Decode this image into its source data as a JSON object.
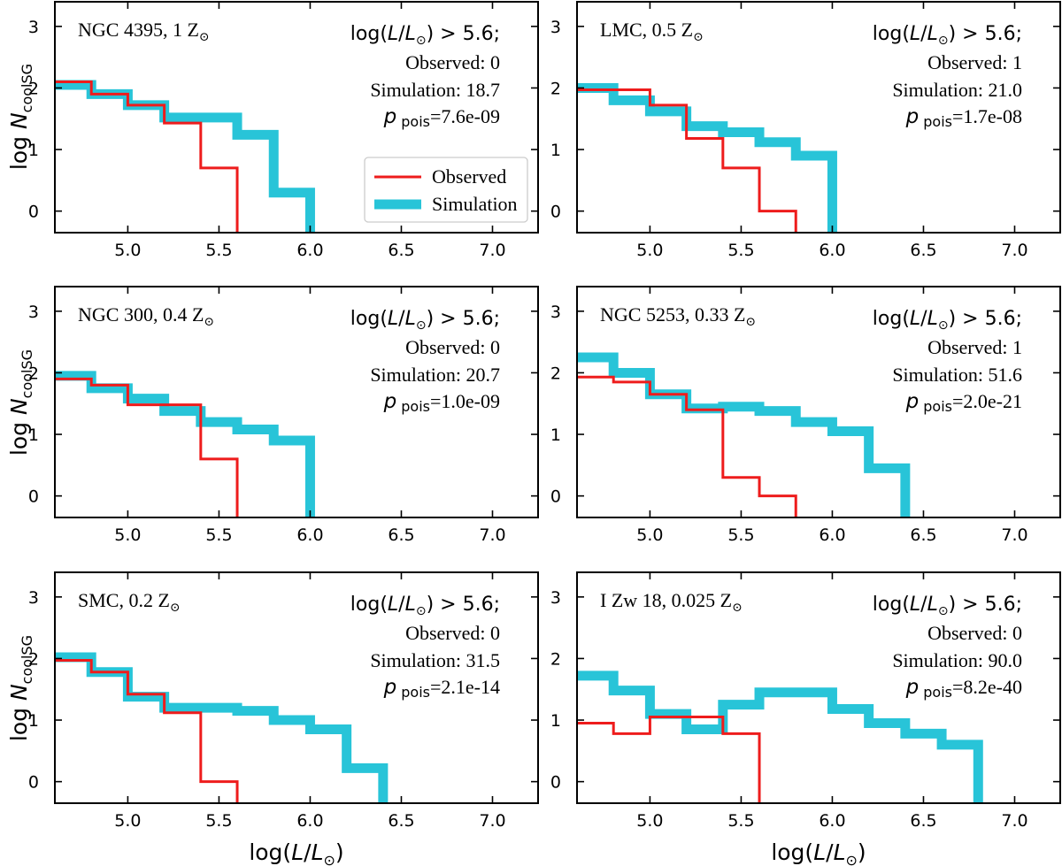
{
  "chart_data": [
    {
      "type": "step",
      "panel_label": "NGC 4395, 1 Z",
      "condition": "log(L/L) > 5.6;",
      "observed_text": "Observed: 0",
      "simulation_text": "Simulation: 18.7",
      "p_value_text": "=7.6e-09",
      "xlim": [
        4.6,
        7.25
      ],
      "ylim": [
        -0.35,
        3.4
      ],
      "series": [
        {
          "name": "Observed",
          "color": "#ee1c1c",
          "bins": [
            [
              4.6,
              4.8,
              2.1
            ],
            [
              4.8,
              5.0,
              1.9
            ],
            [
              5.0,
              5.2,
              1.72
            ],
            [
              5.2,
              5.4,
              1.43
            ],
            [
              5.4,
              5.6,
              0.7
            ]
          ]
        },
        {
          "name": "Simulation",
          "color": "#28c4d8",
          "bins": [
            [
              4.6,
              4.8,
              2.05
            ],
            [
              4.8,
              5.0,
              1.9
            ],
            [
              5.0,
              5.2,
              1.72
            ],
            [
              5.2,
              5.4,
              1.52
            ],
            [
              5.4,
              5.6,
              1.52
            ],
            [
              5.6,
              5.8,
              1.24
            ],
            [
              5.8,
              6.0,
              0.3
            ]
          ]
        }
      ]
    },
    {
      "type": "step",
      "panel_label": "LMC, 0.5 Z",
      "condition": "log(L/L) > 5.6;",
      "observed_text": "Observed: 1",
      "simulation_text": "Simulation: 21.0",
      "p_value_text": "=1.7e-08",
      "xlim": [
        4.6,
        7.25
      ],
      "ylim": [
        -0.35,
        3.4
      ],
      "series": [
        {
          "name": "Observed",
          "color": "#ee1c1c",
          "bins": [
            [
              4.6,
              4.8,
              1.97
            ],
            [
              4.8,
              5.0,
              1.97
            ],
            [
              5.0,
              5.2,
              1.72
            ],
            [
              5.2,
              5.4,
              1.18
            ],
            [
              5.4,
              5.6,
              0.7
            ],
            [
              5.6,
              5.8,
              0.0
            ]
          ]
        },
        {
          "name": "Simulation",
          "color": "#28c4d8",
          "bins": [
            [
              4.6,
              4.8,
              2.0
            ],
            [
              4.8,
              5.0,
              1.8
            ],
            [
              5.0,
              5.2,
              1.62
            ],
            [
              5.2,
              5.4,
              1.38
            ],
            [
              5.4,
              5.6,
              1.28
            ],
            [
              5.6,
              5.8,
              1.12
            ],
            [
              5.8,
              6.0,
              0.9
            ]
          ]
        }
      ]
    },
    {
      "type": "step",
      "panel_label": "NGC 300, 0.4 Z",
      "condition": "log(L/L) > 5.6;",
      "observed_text": "Observed: 0",
      "simulation_text": "Simulation: 20.7",
      "p_value_text": "=1.0e-09",
      "xlim": [
        4.6,
        7.25
      ],
      "ylim": [
        -0.35,
        3.4
      ],
      "series": [
        {
          "name": "Observed",
          "color": "#ee1c1c",
          "bins": [
            [
              4.6,
              4.8,
              1.9
            ],
            [
              4.8,
              5.0,
              1.8
            ],
            [
              5.0,
              5.2,
              1.48
            ],
            [
              5.2,
              5.4,
              1.48
            ],
            [
              5.4,
              5.6,
              0.6
            ]
          ]
        },
        {
          "name": "Simulation",
          "color": "#28c4d8",
          "bins": [
            [
              4.6,
              4.8,
              1.95
            ],
            [
              4.8,
              5.0,
              1.75
            ],
            [
              5.0,
              5.2,
              1.58
            ],
            [
              5.2,
              5.4,
              1.38
            ],
            [
              5.4,
              5.6,
              1.2
            ],
            [
              5.6,
              5.8,
              1.08
            ],
            [
              5.8,
              6.0,
              0.9
            ]
          ]
        }
      ]
    },
    {
      "type": "step",
      "panel_label": "NGC 5253, 0.33 Z",
      "condition": "log(L/L) > 5.6;",
      "observed_text": "Observed: 1",
      "simulation_text": "Simulation: 51.6",
      "p_value_text": "=2.0e-21",
      "xlim": [
        4.6,
        7.25
      ],
      "ylim": [
        -0.35,
        3.4
      ],
      "series": [
        {
          "name": "Observed",
          "color": "#ee1c1c",
          "bins": [
            [
              4.6,
              4.8,
              1.93
            ],
            [
              4.8,
              5.0,
              1.85
            ],
            [
              5.0,
              5.2,
              1.65
            ],
            [
              5.2,
              5.4,
              1.4
            ],
            [
              5.4,
              5.6,
              0.3
            ],
            [
              5.6,
              5.8,
              0.0
            ]
          ]
        },
        {
          "name": "Simulation",
          "color": "#28c4d8",
          "bins": [
            [
              4.6,
              4.8,
              2.25
            ],
            [
              4.8,
              5.0,
              2.0
            ],
            [
              5.0,
              5.2,
              1.65
            ],
            [
              5.2,
              5.4,
              1.42
            ],
            [
              5.4,
              5.6,
              1.45
            ],
            [
              5.6,
              5.8,
              1.38
            ],
            [
              5.8,
              6.0,
              1.2
            ],
            [
              6.0,
              6.2,
              1.05
            ],
            [
              6.2,
              6.4,
              0.45
            ]
          ]
        }
      ]
    },
    {
      "type": "step",
      "panel_label": "SMC, 0.2 Z",
      "condition": "log(L/L) > 5.6;",
      "observed_text": "Observed: 0",
      "simulation_text": "Simulation: 31.5",
      "p_value_text": "=2.1e-14",
      "xlim": [
        4.6,
        7.25
      ],
      "ylim": [
        -0.35,
        3.4
      ],
      "series": [
        {
          "name": "Observed",
          "color": "#ee1c1c",
          "bins": [
            [
              4.6,
              4.8,
              1.97
            ],
            [
              4.8,
              5.0,
              1.78
            ],
            [
              5.0,
              5.2,
              1.42
            ],
            [
              5.2,
              5.4,
              1.12
            ],
            [
              5.4,
              5.6,
              0.0
            ]
          ]
        },
        {
          "name": "Simulation",
          "color": "#28c4d8",
          "bins": [
            [
              4.6,
              4.8,
              2.02
            ],
            [
              4.8,
              5.0,
              1.78
            ],
            [
              5.0,
              5.2,
              1.38
            ],
            [
              5.2,
              5.4,
              1.2
            ],
            [
              5.4,
              5.6,
              1.2
            ],
            [
              5.6,
              5.8,
              1.15
            ],
            [
              5.8,
              6.0,
              1.0
            ],
            [
              6.0,
              6.2,
              0.85
            ],
            [
              6.2,
              6.4,
              0.22
            ]
          ]
        }
      ]
    },
    {
      "type": "step",
      "panel_label": "I Zw 18, 0.025 Z",
      "condition": "log(L/L) > 5.6;",
      "observed_text": "Observed: 0",
      "simulation_text": "Simulation: 90.0",
      "p_value_text": "=8.2e-40",
      "xlim": [
        4.6,
        7.25
      ],
      "ylim": [
        -0.35,
        3.4
      ],
      "series": [
        {
          "name": "Observed",
          "color": "#ee1c1c",
          "bins": [
            [
              4.6,
              4.8,
              0.95
            ],
            [
              4.8,
              5.0,
              0.78
            ],
            [
              5.0,
              5.2,
              1.05
            ],
            [
              5.2,
              5.4,
              1.05
            ],
            [
              5.4,
              5.6,
              0.78
            ]
          ]
        },
        {
          "name": "Simulation",
          "color": "#28c4d8",
          "bins": [
            [
              4.6,
              4.8,
              1.72
            ],
            [
              4.8,
              5.0,
              1.48
            ],
            [
              5.0,
              5.2,
              1.1
            ],
            [
              5.2,
              5.4,
              0.85
            ],
            [
              5.4,
              5.6,
              1.25
            ],
            [
              5.6,
              5.8,
              1.45
            ],
            [
              5.8,
              6.0,
              1.45
            ],
            [
              6.0,
              6.2,
              1.18
            ],
            [
              6.2,
              6.4,
              0.95
            ],
            [
              6.4,
              6.6,
              0.78
            ],
            [
              6.6,
              6.8,
              0.6
            ]
          ]
        }
      ]
    }
  ],
  "axes": {
    "xticks": [
      5.0,
      5.5,
      6.0,
      6.5,
      7.0
    ],
    "xtick_labels": [
      "5.0",
      "5.5",
      "6.0",
      "6.5",
      "7.0"
    ],
    "yticks": [
      0,
      1,
      2,
      3
    ],
    "ytick_labels": [
      "0",
      "1",
      "2",
      "3"
    ],
    "xlabel": "log(L/L)",
    "ylabel_base": "log N",
    "ylabel_sub": "coolSG",
    "p_symbol": "p",
    "p_sub": "pois",
    "sun_symbol": "⊙"
  },
  "legend": {
    "items": [
      {
        "label": "Observed",
        "color": "#ee1c1c"
      },
      {
        "label": "Simulation",
        "color": "#28c4d8"
      }
    ],
    "position": "lower-right of first panel"
  }
}
